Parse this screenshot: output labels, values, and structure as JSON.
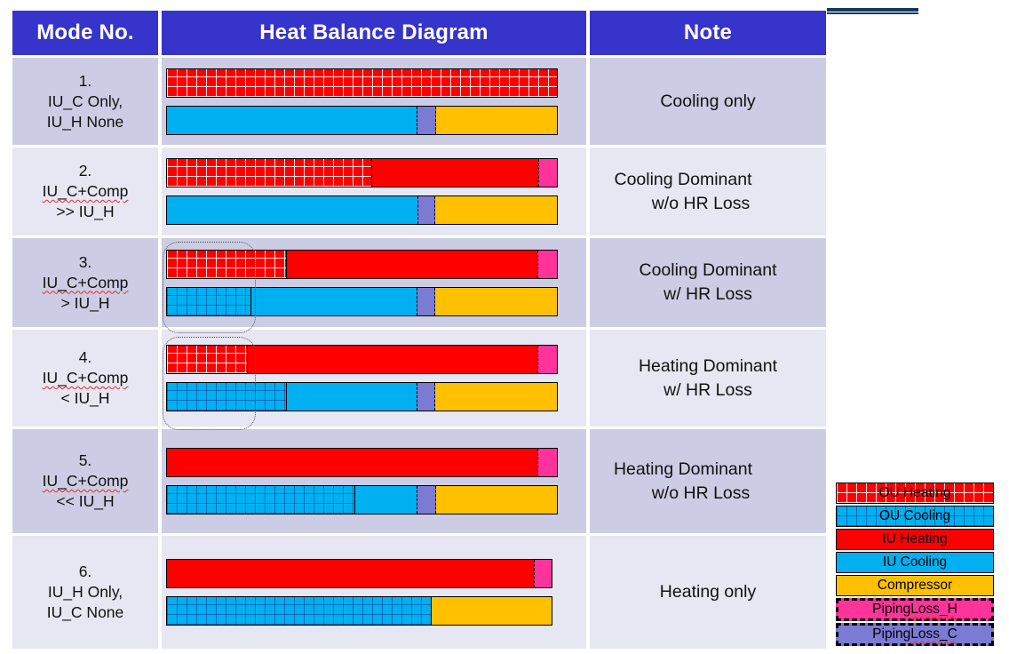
{
  "header": {
    "mode": "Mode No.",
    "diagram": "Heat Balance Diagram",
    "note": "Note"
  },
  "rows": [
    {
      "mode_lines": [
        "1.",
        "IU_C Only,",
        "IU_H None"
      ],
      "squiggle_line": null,
      "note_lines": [
        "Cooling only"
      ],
      "highlight": false,
      "short_bars": false,
      "bars": {
        "top": [
          {
            "type": "ou_heating",
            "pct": 100
          }
        ],
        "bottom": [
          {
            "type": "iu_cooling",
            "pct": 64
          },
          {
            "type": "piping_c",
            "pct": 5
          },
          {
            "type": "compressor",
            "pct": 31
          }
        ]
      }
    },
    {
      "mode_lines": [
        "2.",
        "IU_C+Comp",
        ">> IU_H"
      ],
      "squiggle_line": 1,
      "note_lines": [
        "Cooling Dominant",
        "w/o HR Loss"
      ],
      "highlight": false,
      "short_bars": false,
      "bars": {
        "top": [
          {
            "type": "ou_heating",
            "pct": 52.5
          },
          {
            "type": "iu_heating",
            "pct": 42.7
          },
          {
            "type": "piping_h",
            "pct": 4.8
          }
        ],
        "bottom": [
          {
            "type": "iu_cooling",
            "pct": 64.2
          },
          {
            "type": "piping_c",
            "pct": 4.5
          },
          {
            "type": "compressor",
            "pct": 31.3
          }
        ]
      }
    },
    {
      "mode_lines": [
        "3.",
        "IU_C+Comp",
        "> IU_H"
      ],
      "squiggle_line": 1,
      "note_lines": [
        "Cooling Dominant",
        "w/ HR Loss"
      ],
      "highlight": true,
      "short_bars": false,
      "bars": {
        "top": [
          {
            "type": "ou_heating",
            "pct": 30.6
          },
          {
            "type": "iu_heating",
            "pct": 64.4
          },
          {
            "type": "piping_h",
            "pct": 5
          }
        ],
        "bottom": [
          {
            "type": "ou_cooling",
            "pct": 21.3
          },
          {
            "type": "iu_cooling",
            "pct": 42.6
          },
          {
            "type": "piping_c",
            "pct": 5
          },
          {
            "type": "compressor",
            "pct": 31.1
          }
        ]
      }
    },
    {
      "mode_lines": [
        "4.",
        "IU_C+Comp",
        "< IU_H"
      ],
      "squiggle_line": 1,
      "note_lines": [
        "Heating Dominant",
        "w/ HR Loss"
      ],
      "highlight": true,
      "short_bars": false,
      "bars": {
        "top": [
          {
            "type": "ou_heating",
            "pct": 20.4
          },
          {
            "type": "iu_heating",
            "pct": 74.6
          },
          {
            "type": "piping_h",
            "pct": 5
          }
        ],
        "bottom": [
          {
            "type": "ou_cooling",
            "pct": 30.6
          },
          {
            "type": "iu_cooling",
            "pct": 33.3
          },
          {
            "type": "piping_c",
            "pct": 5
          },
          {
            "type": "compressor",
            "pct": 31.1
          }
        ]
      }
    },
    {
      "mode_lines": [
        "5.",
        "IU_C+Comp",
        "<< IU_H"
      ],
      "squiggle_line": 1,
      "note_lines": [
        "Heating Dominant",
        "w/o HR Loss"
      ],
      "highlight": false,
      "short_bars": false,
      "bars": {
        "top": [
          {
            "type": "iu_heating",
            "pct": 95
          },
          {
            "type": "piping_h",
            "pct": 5
          }
        ],
        "bottom": [
          {
            "type": "ou_cooling",
            "pct": 48.1
          },
          {
            "type": "iu_cooling",
            "pct": 15.9
          },
          {
            "type": "piping_c",
            "pct": 5
          },
          {
            "type": "compressor",
            "pct": 31
          }
        ]
      }
    },
    {
      "mode_lines": [
        "6.",
        "IU_H Only,",
        "IU_C None"
      ],
      "squiggle_line": null,
      "note_lines": [
        "Heating only"
      ],
      "highlight": false,
      "short_bars": true,
      "bars": {
        "top": [
          {
            "type": "iu_heating",
            "pct": 95.4
          },
          {
            "type": "piping_h",
            "pct": 4.6
          }
        ],
        "bottom": [
          {
            "type": "ou_cooling",
            "pct": 68.7
          },
          {
            "type": "compressor",
            "pct": 31.3
          }
        ]
      }
    }
  ],
  "legend": {
    "items": [
      {
        "type": "ou_heating",
        "label": "OU Heating",
        "dashed": false,
        "squiggle_part": null
      },
      {
        "type": "ou_cooling",
        "label": "OU Cooling",
        "dashed": false,
        "squiggle_part": null
      },
      {
        "type": "iu_heating",
        "label": "IU Heating",
        "dashed": false,
        "squiggle_part": null
      },
      {
        "type": "iu_cooling",
        "label": "IU Cooling",
        "dashed": false,
        "squiggle_part": null
      },
      {
        "type": "compressor",
        "label": "Compressor",
        "dashed": false,
        "squiggle_part": null
      },
      {
        "type": "piping_h",
        "label": "Piping Loss_H",
        "dashed": true,
        "squiggle_part": "Loss_H"
      },
      {
        "type": "piping_c",
        "label": "Piping Loss_C",
        "dashed": true,
        "squiggle_part": "Loss_C"
      }
    ]
  },
  "colors": {
    "header_bg": "#3634CB",
    "row_dark": "#CCCCE4",
    "row_light": "#E7E6F3",
    "ou_heating": "#FE0000",
    "ou_cooling": "#00B0F0",
    "iu_heating": "#FE0000",
    "iu_cooling": "#00B0F0",
    "compressor": "#FFC000",
    "piping_h": "#FF3399",
    "piping_c": "#7B7BD4",
    "accent_line": "#17375E"
  }
}
